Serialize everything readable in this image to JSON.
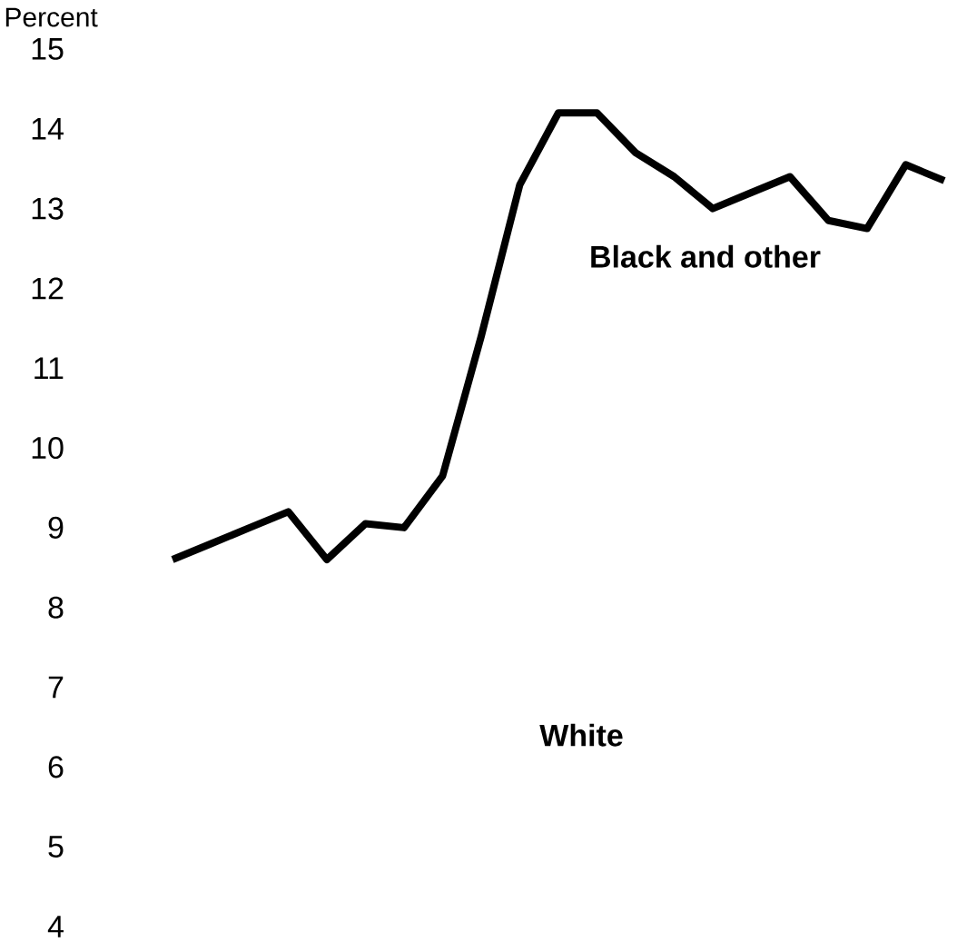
{
  "chart_data": {
    "type": "line",
    "ylabel": "Percent",
    "categories": [
      null,
      null,
      null,
      null,
      null,
      null,
      null,
      null,
      null,
      null,
      null,
      null,
      null,
      null,
      null,
      null,
      null,
      null,
      null,
      null,
      null
    ],
    "values": [
      8.6,
      8.8,
      9.0,
      9.2,
      8.6,
      9.05,
      9.0,
      9.65,
      11.4,
      13.3,
      14.2,
      14.2,
      13.7,
      13.4,
      13.0,
      13.2,
      13.4,
      12.85,
      12.75,
      13.55,
      13.35
    ],
    "color": "#000000",
    "ylim": [
      4,
      15
    ],
    "yticks": [
      4,
      5,
      6,
      7,
      8,
      9,
      10,
      11,
      12,
      13,
      14,
      15
    ],
    "tick_labels": "y",
    "annotations": [
      "Black and other",
      "White"
    ]
  }
}
